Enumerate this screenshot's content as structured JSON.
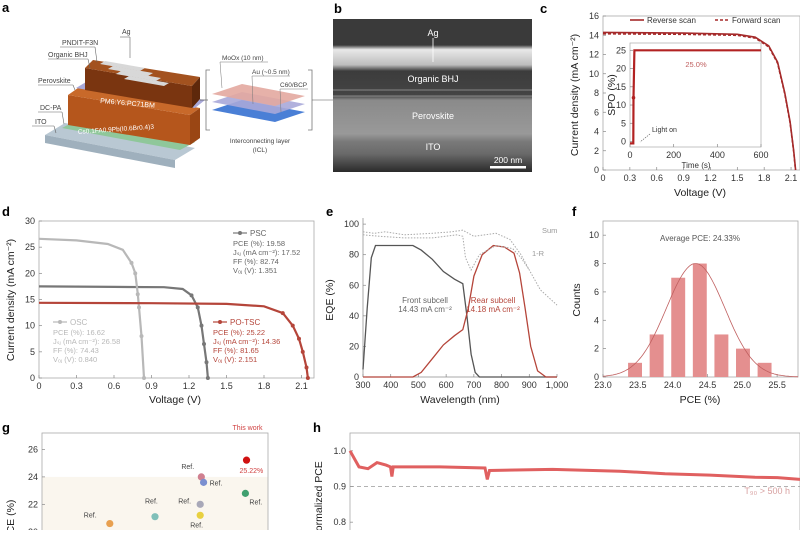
{
  "panels": {
    "a": {
      "letter": "a",
      "labels": [
        "Ag",
        "PNDIT-F3N",
        "Organic BHJ",
        "Perovskite",
        "DC-PA",
        "ITO"
      ],
      "top_layer": "PM6:Y6:PC71BM",
      "perovskite_layer": "Cs0.1FA0.9Pb(I0.6Br0.4)3",
      "icl_labels": [
        "MoOx (10 nm)",
        "Au (~0.5 nm)",
        "C60/BCP"
      ],
      "icl_caption_1": "Interconnecting layer",
      "icl_caption_2": "(ICL)",
      "colors": {
        "organic": "#7a3510",
        "perovskite": "#b5561c",
        "dcpa": "#8fc79a",
        "ito": "#b9c8d3",
        "moox": "#e3a8a0",
        "au": "#a9a9d9",
        "c60": "#4a7fd6"
      }
    },
    "b": {
      "letter": "b",
      "labels": [
        "Ag",
        "Organic BHJ",
        "Perovskite",
        "ITO"
      ],
      "scale_bar": "200 nm"
    },
    "g": {
      "letter": "g"
    },
    "h": {
      "letter": "h"
    }
  },
  "chart_data": [
    {
      "id": "c",
      "letter": "c",
      "type": "line",
      "xlabel": "Voltage (V)",
      "ylabel": "Current density (mA cm⁻²)",
      "xlim": [
        0,
        2.2
      ],
      "ylim": [
        0,
        16
      ],
      "xticks": [
        "0",
        "0.3",
        "0.6",
        "0.9",
        "1.2",
        "1.5",
        "1.8",
        "2.1"
      ],
      "yticks": [
        "0",
        "2",
        "4",
        "6",
        "8",
        "10",
        "12",
        "14",
        "16"
      ],
      "legend": "top-right",
      "series": [
        {
          "name": "Reverse scan",
          "style": "solid",
          "color": "#a52a2a",
          "points": [
            [
              0,
              14.3
            ],
            [
              0.9,
              14.22
            ],
            [
              1.5,
              14.1
            ],
            [
              1.7,
              13.8
            ],
            [
              1.85,
              12.9
            ],
            [
              1.95,
              11.2
            ],
            [
              2.03,
              8
            ],
            [
              2.09,
              5
            ],
            [
              2.13,
              2
            ],
            [
              2.151,
              0
            ]
          ]
        },
        {
          "name": "Forward scan",
          "style": "dashed",
          "color": "#a52a2a",
          "points": [
            [
              0,
              14.15
            ],
            [
              0.9,
              14.1
            ],
            [
              1.5,
              14.0
            ],
            [
              1.7,
              13.7
            ],
            [
              1.85,
              12.8
            ],
            [
              1.95,
              11.1
            ],
            [
              2.03,
              7.9
            ],
            [
              2.09,
              4.9
            ],
            [
              2.13,
              1.9
            ],
            [
              2.15,
              0
            ]
          ]
        }
      ],
      "inset": {
        "type": "line",
        "xlabel": "Time (s)",
        "ylabel": "SPO (%)",
        "xlim": [
          0,
          600
        ],
        "ylim": [
          -1.5,
          27
        ],
        "xticks": [
          "0",
          "200",
          "400",
          "600"
        ],
        "yticks": [
          "0",
          "5",
          "10",
          "15",
          "20",
          "25"
        ],
        "annotation_value": "25.0%",
        "annotation_light": "Light on",
        "points": [
          [
            0,
            -0.5
          ],
          [
            15,
            -0.5
          ],
          [
            16,
            12
          ],
          [
            20,
            25
          ],
          [
            600,
            25
          ]
        ]
      }
    },
    {
      "id": "d",
      "letter": "d",
      "type": "line",
      "xlabel": "Voltage (V)",
      "ylabel": "Current density (mA cm⁻²)",
      "xlim": [
        0,
        2.2
      ],
      "ylim": [
        0,
        30
      ],
      "xticks": [
        "0",
        "0.3",
        "0.6",
        "0.9",
        "1.2",
        "1.5",
        "1.8",
        "2.1"
      ],
      "yticks": [
        "0",
        "5",
        "10",
        "15",
        "20",
        "25",
        "30"
      ],
      "series": [
        {
          "name": "PSC",
          "color": "#777777",
          "pce": "PCE (%): 19.58",
          "jsc": "Jₛⱼ (mA cm⁻²): 17.52",
          "ff": "FF (%): 82.74",
          "voc": "Vₒⱼ (V): 1.351",
          "points": [
            [
              0,
              17.5
            ],
            [
              0.6,
              17.4
            ],
            [
              1.0,
              17.35
            ],
            [
              1.15,
              17.0
            ],
            [
              1.22,
              15.8
            ],
            [
              1.27,
              13.5
            ],
            [
              1.3,
              10
            ],
            [
              1.32,
              6.5
            ],
            [
              1.34,
              3
            ],
            [
              1.351,
              0
            ]
          ]
        },
        {
          "name": "OSC",
          "color": "#b8b8b8",
          "pce": "PCE (%): 16.62",
          "jsc": "Jₛⱼ (mA cm⁻²): 26.58",
          "ff": "FF (%): 74.43",
          "voc": "Vₒⱼ (V): 0.840",
          "points": [
            [
              0,
              26.6
            ],
            [
              0.3,
              26.3
            ],
            [
              0.55,
              25.6
            ],
            [
              0.67,
              24.5
            ],
            [
              0.74,
              22
            ],
            [
              0.77,
              20
            ],
            [
              0.79,
              16
            ],
            [
              0.8,
              13.5
            ],
            [
              0.82,
              8
            ],
            [
              0.84,
              0
            ]
          ]
        },
        {
          "name": "PO-TSC",
          "color": "#b5453a",
          "pce": "PCE (%): 25.22",
          "jsc": "Jₛⱼ (mA cm⁻²): 14.36",
          "ff": "FF (%): 81.65",
          "voc": "Vₒⱼ (V): 2.151",
          "points": [
            [
              0,
              14.36
            ],
            [
              0.9,
              14.3
            ],
            [
              1.5,
              14.15
            ],
            [
              1.8,
              13.7
            ],
            [
              1.95,
              12.4
            ],
            [
              2.03,
              10
            ],
            [
              2.08,
              7.5
            ],
            [
              2.11,
              5
            ],
            [
              2.14,
              2
            ],
            [
              2.151,
              0
            ]
          ]
        }
      ]
    },
    {
      "id": "e",
      "letter": "e",
      "type": "line",
      "xlabel": "Wavelength (nm)",
      "ylabel": "EQE (%)",
      "xlim": [
        300,
        1000
      ],
      "ylim": [
        0,
        100
      ],
      "xticks": [
        "300",
        "400",
        "500",
        "600",
        "700",
        "800",
        "900",
        "1,000"
      ],
      "yticks": [
        "0",
        "20",
        "40",
        "60",
        "80",
        "100"
      ],
      "series": [
        {
          "name": "Front subcell",
          "label2": "14.43 mA cm⁻²",
          "color": "#555555",
          "style": "solid",
          "points": [
            [
              300,
              5
            ],
            [
              315,
              45
            ],
            [
              330,
              78
            ],
            [
              345,
              86
            ],
            [
              400,
              86
            ],
            [
              480,
              86
            ],
            [
              510,
              83
            ],
            [
              550,
              77
            ],
            [
              590,
              69
            ],
            [
              630,
              64
            ],
            [
              660,
              61
            ],
            [
              675,
              40
            ],
            [
              690,
              15
            ],
            [
              705,
              3
            ],
            [
              720,
              0
            ],
            [
              1000,
              0
            ]
          ]
        },
        {
          "name": "Rear subcell",
          "label2": "14.18 mA cm⁻²",
          "color": "#b5453a",
          "style": "solid",
          "points": [
            [
              300,
              0
            ],
            [
              480,
              0
            ],
            [
              510,
              3
            ],
            [
              550,
              12
            ],
            [
              590,
              21
            ],
            [
              630,
              27
            ],
            [
              660,
              31
            ],
            [
              680,
              45
            ],
            [
              700,
              66
            ],
            [
              730,
              80
            ],
            [
              770,
              86
            ],
            [
              810,
              85
            ],
            [
              845,
              81
            ],
            [
              865,
              68
            ],
            [
              885,
              45
            ],
            [
              905,
              20
            ],
            [
              930,
              4
            ],
            [
              960,
              0
            ],
            [
              1000,
              0
            ]
          ]
        },
        {
          "name": "Sum",
          "color": "#aaaaaa",
          "style": "dotted",
          "points": [
            [
              300,
              95
            ],
            [
              340,
              94
            ],
            [
              380,
              95
            ],
            [
              450,
              93
            ],
            [
              550,
              94
            ],
            [
              620,
              95
            ],
            [
              660,
              96
            ],
            [
              700,
              92
            ],
            [
              780,
              94
            ],
            [
              830,
              90
            ],
            [
              870,
              80
            ],
            [
              900,
              70
            ],
            [
              940,
              57
            ],
            [
              1000,
              47
            ]
          ]
        },
        {
          "name": "1-R",
          "color": "#aaaaaa",
          "style": "dotted",
          "points": [
            [
              300,
              93
            ],
            [
              360,
              92
            ],
            [
              450,
              91
            ],
            [
              550,
              91
            ],
            [
              640,
              93
            ],
            [
              660,
              92
            ],
            [
              670,
              78
            ],
            [
              690,
              70
            ],
            [
              720,
              80
            ],
            [
              780,
              86
            ],
            [
              840,
              84
            ],
            [
              870,
              78
            ],
            [
              900,
              70
            ]
          ]
        }
      ]
    },
    {
      "id": "f",
      "letter": "f",
      "type": "bar",
      "xlabel": "PCE (%)",
      "ylabel": "Counts",
      "xlim": [
        23.0,
        25.8
      ],
      "ylim": [
        0,
        11
      ],
      "xticks": [
        "23.0",
        "23.5",
        "24.0",
        "24.5",
        "25.0",
        "25.5"
      ],
      "yticks": [
        "0",
        "2",
        "4",
        "6",
        "8",
        "10"
      ],
      "annotation": "Average PCE: 24.33%",
      "bin_centers": [
        23.46,
        23.77,
        24.08,
        24.39,
        24.7,
        25.01,
        25.32
      ],
      "values": [
        1,
        3,
        7,
        8,
        3,
        2,
        1
      ],
      "fit": {
        "type": "gaussian",
        "mean": 24.33,
        "peak": 8,
        "sigma": 0.42
      },
      "color": "#e48f8f"
    },
    {
      "id": "g",
      "type": "scatter",
      "ylabel": "PCE (%)",
      "ylim": [
        19,
        27
      ],
      "yticks": [
        "20",
        "22",
        "24",
        "26"
      ],
      "points": [
        {
          "label": "Ref.",
          "pce": 20.6,
          "color": "#e8a050"
        },
        {
          "label": "Ref.",
          "pce": 21.1,
          "color": "#7fbfb8"
        },
        {
          "label": "Ref.",
          "pce": 22.0,
          "color": "#a8a8b8"
        },
        {
          "label": "Ref.",
          "pce": 21.2,
          "color": "#e8d040"
        },
        {
          "label": "Ref.",
          "pce": 24.0,
          "color": "#d08090"
        },
        {
          "label": "Ref.",
          "pce": 23.6,
          "color": "#7a8fd0"
        },
        {
          "label": "Ref.",
          "pce": 22.8,
          "color": "#40a070"
        },
        {
          "label": "This work",
          "pce": 25.22,
          "value_label": "25.22%",
          "color": "#d01010"
        }
      ]
    },
    {
      "id": "h",
      "type": "line",
      "ylabel": "Normalized PCE",
      "ylim": [
        0.75,
        1.05
      ],
      "yticks": [
        "0.8",
        "0.9",
        "1.0"
      ],
      "reference_line": 0.9,
      "annotation": "T₉₀ > 500 h",
      "color": "#e06060",
      "points": [
        [
          0,
          1.0
        ],
        [
          0.02,
          0.955
        ],
        [
          0.04,
          0.95
        ],
        [
          0.06,
          0.967
        ],
        [
          0.08,
          0.96
        ],
        [
          0.09,
          0.955
        ],
        [
          0.093,
          0.928
        ],
        [
          0.096,
          0.955
        ],
        [
          0.2,
          0.955
        ],
        [
          0.3,
          0.952
        ],
        [
          0.305,
          0.92
        ],
        [
          0.31,
          0.945
        ],
        [
          0.45,
          0.948
        ],
        [
          0.6,
          0.943
        ],
        [
          0.7,
          0.936
        ],
        [
          0.8,
          0.932
        ],
        [
          0.9,
          0.926
        ],
        [
          0.95,
          0.925
        ],
        [
          1.0,
          0.92
        ]
      ]
    }
  ]
}
